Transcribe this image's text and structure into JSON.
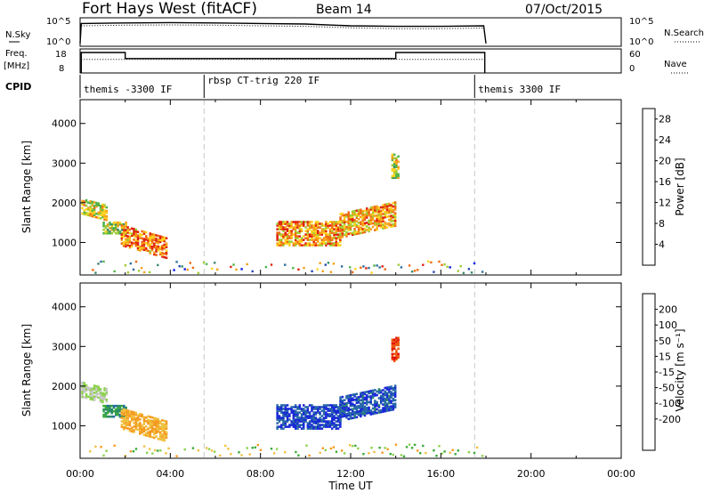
{
  "header": {
    "title": "Fort Hays West (fitACF)",
    "beam": "Beam 14",
    "date": "07/Oct/2015"
  },
  "chart_data": [
    {
      "type": "line",
      "id": "nsky-nsearch",
      "left_label": "N.Sky",
      "right_label": "N.Search",
      "left_ticks": [
        "10^5",
        "10^0"
      ],
      "right_ticks": [
        "10^5",
        "10^0"
      ],
      "xlim": [
        "00:00",
        "24:00"
      ],
      "series": [
        {
          "style": "solid",
          "x": [
            0.0,
            0.05,
            2,
            4,
            6,
            8,
            10,
            12,
            14,
            16,
            17.9,
            18.0
          ],
          "y_frac": [
            0.1,
            0.8,
            0.82,
            0.83,
            0.82,
            0.8,
            0.78,
            0.72,
            0.7,
            0.7,
            0.72,
            0.1
          ]
        },
        {
          "style": "dotted",
          "x": [
            0.05,
            2,
            4,
            6,
            8,
            10,
            12,
            14,
            16,
            17.9
          ],
          "y_frac": [
            0.72,
            0.74,
            0.75,
            0.74,
            0.72,
            0.7,
            0.65,
            0.62,
            0.62,
            0.64
          ]
        }
      ]
    },
    {
      "type": "line",
      "id": "freq-nave",
      "left_label": "Freq.",
      "left_unit": "[MHz]",
      "right_label": "Nave",
      "left_ticks": [
        18,
        8
      ],
      "right_ticks": [
        60,
        0
      ],
      "series": [
        {
          "name": "Freq.",
          "style": "solid",
          "unit": "MHz",
          "x": [
            0.05,
            0.05,
            2.0,
            2.0,
            14.0,
            14.0,
            17.95,
            17.95
          ],
          "y": [
            8,
            16.5,
            16.5,
            14.0,
            14.0,
            16.5,
            16.5,
            8
          ]
        },
        {
          "name": "Nave",
          "style": "dotted",
          "x": [
            0.05,
            17.95
          ],
          "y": [
            34,
            34
          ]
        }
      ]
    },
    {
      "type": "table",
      "id": "cpid",
      "label": "CPID",
      "segments": [
        {
          "start": 0.0,
          "text": "themis -3300 IF"
        },
        {
          "start": 5.5,
          "text": "rbsp CT-trig 220 IF"
        },
        {
          "start": 17.5,
          "text": "themis 3300 IF"
        }
      ]
    },
    {
      "type": "heatmap",
      "id": "power",
      "ylabel": "Slant Range [km]",
      "xlabel": "Time UT",
      "xlim": [
        0,
        24
      ],
      "ylim": [
        180,
        4600
      ],
      "x_ticks": [
        "00:00",
        "04:00",
        "08:00",
        "12:00",
        "16:00",
        "20:00",
        "00:00"
      ],
      "y_ticks": [
        1000,
        2000,
        3000,
        4000
      ],
      "colorbar": {
        "label": "Power [dB]",
        "ticks": [
          4,
          8,
          12,
          16,
          20,
          24,
          28
        ],
        "range": [
          0,
          30
        ],
        "colors": [
          "#0a1de6",
          "#2848b4",
          "#2e6e9c",
          "#3a8a6a",
          "#4fb44a",
          "#9fcc32",
          "#ffd21e",
          "#f5a01a",
          "#ef6a14",
          "#e0200e"
        ]
      },
      "gate_lines": [
        5.5,
        17.5
      ]
    },
    {
      "type": "heatmap",
      "id": "velocity",
      "ylabel": "Slant Range [km]",
      "xlabel": "Time UT",
      "xlim": [
        0,
        24
      ],
      "ylim": [
        180,
        4600
      ],
      "x_ticks": [
        "00:00",
        "04:00",
        "08:00",
        "12:00",
        "16:00",
        "20:00",
        "00:00"
      ],
      "y_ticks": [
        1000,
        2000,
        3000,
        4000
      ],
      "colorbar": {
        "label": "Velocity [m s⁻¹]",
        "ticks": [
          200,
          100,
          50,
          15,
          -15,
          -50,
          -100,
          -200
        ],
        "colors": [
          "#1a28d8",
          "#2868a8",
          "#2a8a6a",
          "#3aaa3a",
          "#8cd24a",
          "#c8c8c8",
          "#f0c040",
          "#f59a20",
          "#ee5a10",
          "#e01010"
        ]
      },
      "gate_lines": [
        5.5,
        17.5
      ]
    }
  ]
}
